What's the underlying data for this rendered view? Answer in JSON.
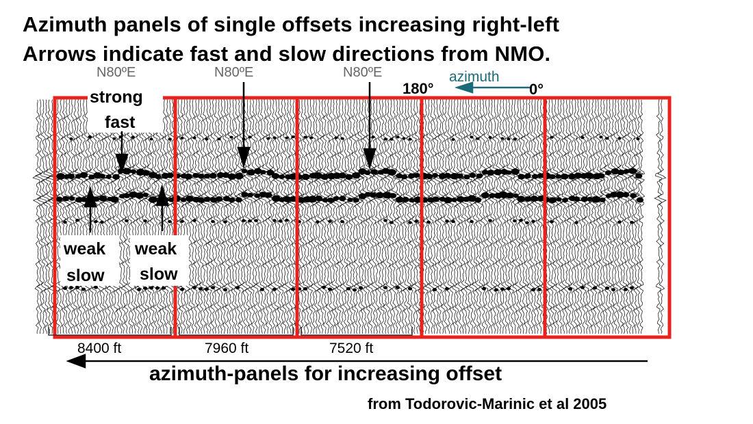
{
  "title": {
    "line1": "Azimuth panels of single offsets increasing right-left",
    "line2": "Arrows indicate fast and slow directions from NMO."
  },
  "azimuth_scale": {
    "left_value": "180°",
    "label": "azimuth",
    "right_value": "0°",
    "label_color": "#1a6b78"
  },
  "panel_labels": [
    {
      "text": "N80ºE"
    },
    {
      "text": "N80ºE"
    },
    {
      "text": "N80ºE"
    }
  ],
  "annotations": {
    "strong": "strong",
    "fast": "fast",
    "weak_left": "weak",
    "slow_left": "slow",
    "weak_right": "weak",
    "slow_right": "slow"
  },
  "offsets": [
    {
      "label": "8400 ft"
    },
    {
      "label": "7960 ft"
    },
    {
      "label": "7520 ft"
    }
  ],
  "caption": "azimuth-panels for increasing offset",
  "source": "from Todorovic-Marinic et al 2005",
  "colors": {
    "panel_border": "#e8231f",
    "trace": "#000000",
    "azimuth_arrow": "#1a6b78"
  }
}
